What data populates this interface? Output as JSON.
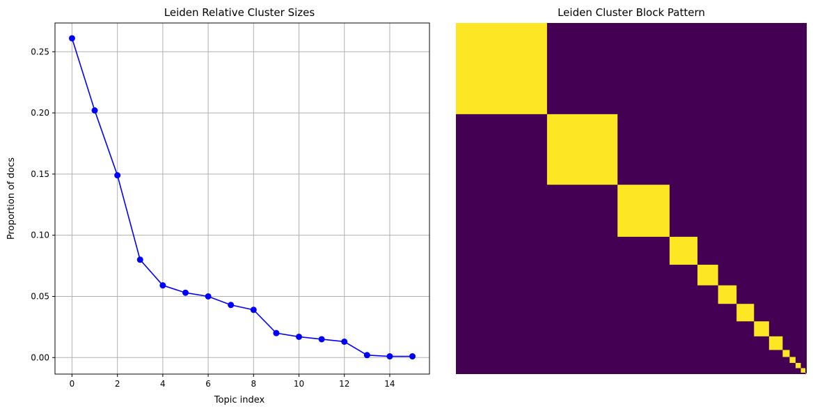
{
  "chart_data": [
    {
      "type": "line",
      "title": "Leiden Relative Cluster Sizes",
      "xlabel": "Topic index",
      "ylabel": "Proportion of docs",
      "x": [
        0,
        1,
        2,
        3,
        4,
        5,
        6,
        7,
        8,
        9,
        10,
        11,
        12,
        13,
        14,
        15
      ],
      "series": [
        {
          "values": [
            0.261,
            0.202,
            0.149,
            0.08,
            0.059,
            0.053,
            0.05,
            0.043,
            0.039,
            0.02,
            0.017,
            0.015,
            0.013,
            0.002,
            0.001,
            0.001
          ],
          "color": "#0000ff",
          "marker": "circle"
        }
      ],
      "xlim": [
        -0.75,
        15.75
      ],
      "ylim": [
        -0.0135,
        0.2735
      ],
      "xticks": [
        0,
        2,
        4,
        6,
        8,
        10,
        12,
        14
      ],
      "xtick_labels": [
        "0",
        "2",
        "4",
        "6",
        "8",
        "10",
        "12",
        "14"
      ],
      "yticks": [
        0.0,
        0.05,
        0.1,
        0.15,
        0.2,
        0.25
      ],
      "ytick_labels": [
        "0.00",
        "0.05",
        "0.10",
        "0.15",
        "0.20",
        "0.25"
      ],
      "grid": true
    },
    {
      "type": "heatmap",
      "title": "Leiden Cluster Block Pattern",
      "block_proportions": [
        0.261,
        0.202,
        0.149,
        0.08,
        0.059,
        0.053,
        0.05,
        0.043,
        0.039,
        0.02,
        0.017,
        0.015,
        0.013,
        0.002,
        0.001,
        0.001
      ],
      "in_block_color": "#fde725",
      "background_color": "#440154",
      "axes_visible": false
    }
  ]
}
